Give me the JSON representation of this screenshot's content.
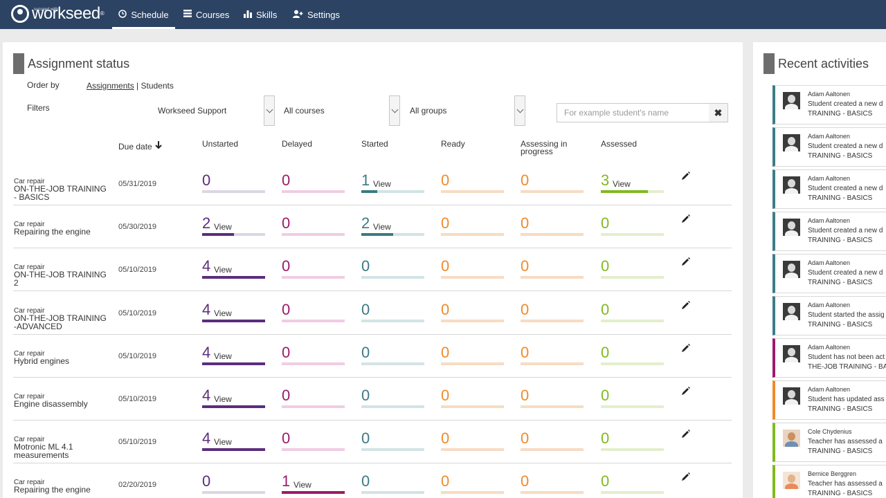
{
  "app": {
    "logo_small": "succeed with",
    "logo_text": "workseed",
    "logo_reg": "®"
  },
  "nav": {
    "schedule": "Schedule",
    "courses": "Courses",
    "skills": "Skills",
    "settings": "Settings"
  },
  "assignment_status": {
    "title": "Assignment status",
    "order_by_label": "Order by",
    "order_by_assignments": "Assignments",
    "order_by_separator": " | ",
    "order_by_students": "Students",
    "filters_label": "Filters",
    "filter_org": "Workseed Support",
    "filter_courses": "All courses",
    "filter_groups": "All groups",
    "search_placeholder": "For example student's name",
    "clear_icon": "✖"
  },
  "columns": {
    "due_date": "Due date",
    "sort_arrow": "🡣",
    "unstarted": "Unstarted",
    "delayed": "Delayed",
    "started": "Started",
    "ready": "Ready",
    "assessing": "Assessing in progress",
    "assessed": "Assessed"
  },
  "colors": {
    "unstarted": "#5b2d7d",
    "unstarted_track": "#dcd6e3",
    "delayed": "#9c1a6b",
    "delayed_track": "#f0cde2",
    "started": "#3b7a84",
    "started_track": "#d3e3e6",
    "ready": "#ef8b2c",
    "ready_track": "#f7dcc2",
    "assessing": "#ef8b2c",
    "assessing_track": "#f7dcc2",
    "assessed": "#7fba1f",
    "assessed_track": "#e3efcd"
  },
  "view_label": "View",
  "rows": [
    {
      "category": "Car repair",
      "course": "ON-THE-JOB TRAINING - BASICS",
      "due": "05/31/2019",
      "counts": {
        "unstarted": "0",
        "delayed": "0",
        "started": "1",
        "ready": "0",
        "assessing": "0",
        "assessed": "3"
      },
      "fill": {
        "unstarted": 0,
        "delayed": 0,
        "started": 0.25,
        "ready": 0,
        "assessing": 0,
        "assessed": 0.75
      }
    },
    {
      "category": "Car repair",
      "course": "Repairing the engine",
      "due": "05/30/2019",
      "counts": {
        "unstarted": "2",
        "delayed": "0",
        "started": "2",
        "ready": "0",
        "assessing": "0",
        "assessed": "0"
      },
      "fill": {
        "unstarted": 0.5,
        "delayed": 0,
        "started": 0.5,
        "ready": 0,
        "assessing": 0,
        "assessed": 0
      }
    },
    {
      "category": "Car repair",
      "course": "ON-THE-JOB TRAINING 2",
      "due": "05/10/2019",
      "counts": {
        "unstarted": "4",
        "delayed": "0",
        "started": "0",
        "ready": "0",
        "assessing": "0",
        "assessed": "0"
      },
      "fill": {
        "unstarted": 1,
        "delayed": 0,
        "started": 0,
        "ready": 0,
        "assessing": 0,
        "assessed": 0
      }
    },
    {
      "category": "Car repair",
      "course": "ON-THE-JOB TRAINING -ADVANCED",
      "due": "05/10/2019",
      "counts": {
        "unstarted": "4",
        "delayed": "0",
        "started": "0",
        "ready": "0",
        "assessing": "0",
        "assessed": "0"
      },
      "fill": {
        "unstarted": 1,
        "delayed": 0,
        "started": 0,
        "ready": 0,
        "assessing": 0,
        "assessed": 0
      }
    },
    {
      "category": "Car repair",
      "course": "Hybrid engines",
      "due": "05/10/2019",
      "counts": {
        "unstarted": "4",
        "delayed": "0",
        "started": "0",
        "ready": "0",
        "assessing": "0",
        "assessed": "0"
      },
      "fill": {
        "unstarted": 1,
        "delayed": 0,
        "started": 0,
        "ready": 0,
        "assessing": 0,
        "assessed": 0
      }
    },
    {
      "category": "Car repair",
      "course": "Engine disassembly",
      "due": "05/10/2019",
      "counts": {
        "unstarted": "4",
        "delayed": "0",
        "started": "0",
        "ready": "0",
        "assessing": "0",
        "assessed": "0"
      },
      "fill": {
        "unstarted": 1,
        "delayed": 0,
        "started": 0,
        "ready": 0,
        "assessing": 0,
        "assessed": 0
      }
    },
    {
      "category": "Car repair",
      "course": "Motronic ML 4.1 measurements",
      "due": "05/10/2019",
      "counts": {
        "unstarted": "4",
        "delayed": "0",
        "started": "0",
        "ready": "0",
        "assessing": "0",
        "assessed": "0"
      },
      "fill": {
        "unstarted": 1,
        "delayed": 0,
        "started": 0,
        "ready": 0,
        "assessing": 0,
        "assessed": 0
      }
    },
    {
      "category": "Car repair",
      "course": "Repairing the engine",
      "due": "02/20/2019",
      "counts": {
        "unstarted": "0",
        "delayed": "1",
        "started": "0",
        "ready": "0",
        "assessing": "0",
        "assessed": "0"
      },
      "fill": {
        "unstarted": 0,
        "delayed": 1,
        "started": 0,
        "ready": 0,
        "assessing": 0,
        "assessed": 0
      }
    }
  ],
  "recent": {
    "title": "Recent activities",
    "items": [
      {
        "name": "Adam Aaltonen",
        "text": "Student created a new d",
        "course": "TRAINING - BASICS",
        "color": "#3c7d86",
        "avatar": "adam"
      },
      {
        "name": "Adam Aaltonen",
        "text": "Student created a new d",
        "course": "TRAINING - BASICS",
        "color": "#3c7d86",
        "avatar": "adam"
      },
      {
        "name": "Adam Aaltonen",
        "text": "Student created a new d",
        "course": "TRAINING - BASICS",
        "color": "#3c7d86",
        "avatar": "adam"
      },
      {
        "name": "Adam Aaltonen",
        "text": "Student created a new d",
        "course": "TRAINING - BASICS",
        "color": "#3c7d86",
        "avatar": "adam"
      },
      {
        "name": "Adam Aaltonen",
        "text": "Student created a new d",
        "course": "TRAINING - BASICS",
        "color": "#3c7d86",
        "avatar": "adam"
      },
      {
        "name": "Adam Aaltonen",
        "text": "Student started the assig",
        "course": "TRAINING - BASICS",
        "color": "#3c7d86",
        "avatar": "adam"
      },
      {
        "name": "Adam Aaltonen",
        "text": "Student has not been act",
        "course": "THE-JOB TRAINING - BAS",
        "color": "#9c1a6b",
        "avatar": "adam"
      },
      {
        "name": "Adam Aaltonen",
        "text": "Student has updated ass",
        "course": "TRAINING - BASICS",
        "color": "#ef8b2c",
        "avatar": "adam"
      },
      {
        "name": "Cole Chydenius",
        "text": "Teacher has assessed a",
        "course": "TRAINING - BASICS",
        "color": "#7fba1f",
        "avatar": "cole"
      },
      {
        "name": "Bernice Berggren",
        "text": "Teacher has assessed a",
        "course": "TRAINING - BASICS",
        "color": "#7fba1f",
        "avatar": "bernice"
      }
    ]
  }
}
